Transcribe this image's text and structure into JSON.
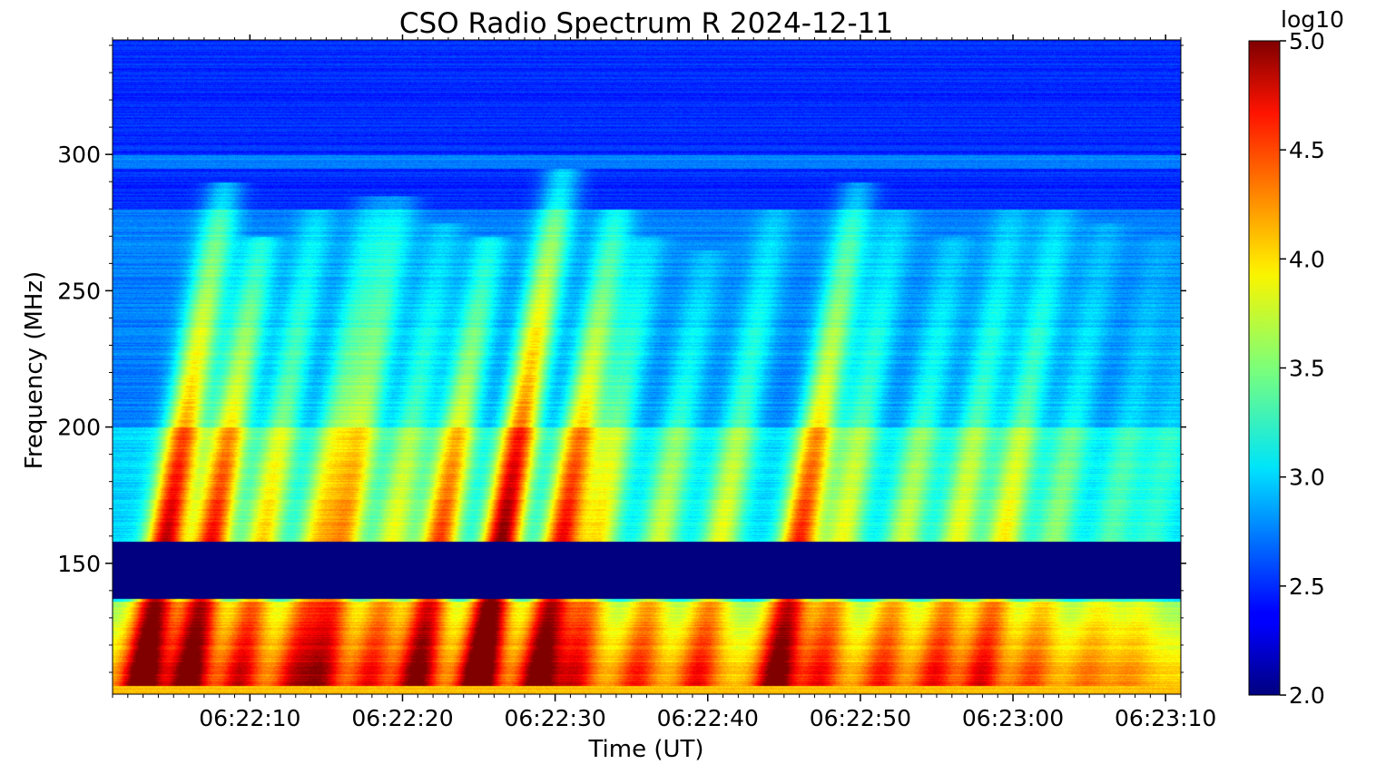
{
  "chart_data": {
    "type": "heatmap",
    "title": "CSO Radio Spectrum R 2024-12-11",
    "xlabel": "Time (UT)",
    "ylabel": "Frequency (MHz)",
    "x_ticks": [
      "06:22:10",
      "06:22:20",
      "06:22:30",
      "06:22:40",
      "06:22:50",
      "06:23:00",
      "06:23:10"
    ],
    "x_tick_seconds": [
      10,
      20,
      30,
      40,
      50,
      60,
      70
    ],
    "xlim_seconds": [
      1,
      71
    ],
    "y_ticks": [
      150,
      200,
      250,
      300
    ],
    "ylim": [
      102,
      342
    ],
    "colorbar": {
      "label": "log10",
      "ticks": [
        "2.0",
        "2.5",
        "3.0",
        "3.5",
        "4.0",
        "4.5",
        "5.0"
      ],
      "range": [
        2.0,
        5.0
      ],
      "colormap": "jet"
    },
    "features": {
      "background_level": 2.5,
      "low_signal_band_mhz": [
        137,
        158
      ],
      "bursts": [
        {
          "t": 4.5,
          "f_low": 160,
          "f_high": 290,
          "peak": 4.6
        },
        {
          "t": 7.5,
          "f_low": 160,
          "f_high": 270,
          "peak": 4.4
        },
        {
          "t": 11,
          "f_low": 165,
          "f_high": 280,
          "peak": 3.7
        },
        {
          "t": 14.5,
          "f_low": 165,
          "f_high": 285,
          "peak": 3.6
        },
        {
          "t": 16.5,
          "f_low": 170,
          "f_high": 285,
          "peak": 3.8
        },
        {
          "t": 19.5,
          "f_low": 165,
          "f_high": 275,
          "peak": 3.5
        },
        {
          "t": 22.5,
          "f_low": 162,
          "f_high": 270,
          "peak": 4.2
        },
        {
          "t": 26.5,
          "f_low": 160,
          "f_high": 295,
          "peak": 4.8
        },
        {
          "t": 30.5,
          "f_low": 162,
          "f_high": 280,
          "peak": 4.4
        },
        {
          "t": 33,
          "f_low": 165,
          "f_high": 270,
          "peak": 3.6
        },
        {
          "t": 37,
          "f_low": 165,
          "f_high": 265,
          "peak": 3.4
        },
        {
          "t": 41,
          "f_low": 165,
          "f_high": 280,
          "peak": 3.5
        },
        {
          "t": 46,
          "f_low": 160,
          "f_high": 290,
          "peak": 4.3
        },
        {
          "t": 49,
          "f_low": 165,
          "f_high": 280,
          "peak": 3.5
        },
        {
          "t": 53,
          "f_low": 165,
          "f_high": 270,
          "peak": 3.4
        },
        {
          "t": 56.5,
          "f_low": 165,
          "f_high": 280,
          "peak": 3.5
        },
        {
          "t": 59.5,
          "f_low": 163,
          "f_high": 280,
          "peak": 3.6
        },
        {
          "t": 63,
          "f_low": 170,
          "f_high": 275,
          "peak": 3.2
        },
        {
          "t": 67,
          "f_low": 180,
          "f_high": 270,
          "peak": 3.0
        },
        {
          "t": 70,
          "f_low": 190,
          "f_high": 270,
          "peak": 2.9
        }
      ]
    }
  }
}
